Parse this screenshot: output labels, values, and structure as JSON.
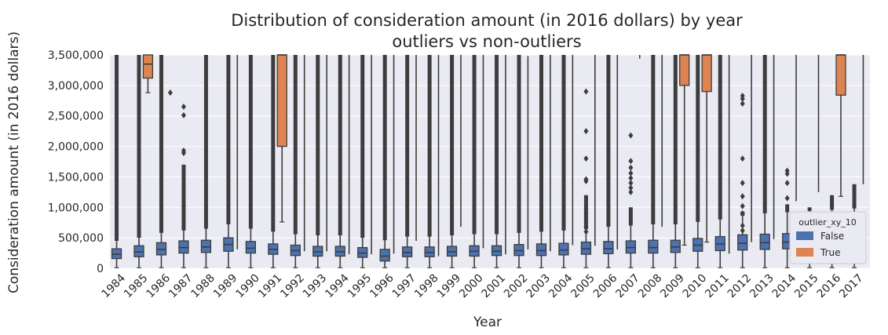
{
  "chart_data": {
    "type": "boxplot",
    "title_line1": "Distribution of consideration amount (in 2016 dollars) by year",
    "title_line2": "outliers vs non-outliers",
    "xlabel": "Year",
    "ylabel": "Consideration amount (in 2016 dollars)",
    "ylim": [
      0,
      3500000
    ],
    "yticks": [
      0,
      500000,
      1000000,
      1500000,
      2000000,
      2500000,
      3000000,
      3500000
    ],
    "ytick_labels": [
      "0",
      "500,000",
      "1,000,000",
      "1,500,000",
      "2,000,000",
      "2,500,000",
      "3,000,000",
      "3,500,000"
    ],
    "grid": true,
    "legend": {
      "title": "outlier_xy_10",
      "placement": "lower-right",
      "entries": [
        {
          "label": "False",
          "color": "#4c72b0"
        },
        {
          "label": "True",
          "color": "#dd8452"
        }
      ]
    },
    "categories": [
      "1984",
      "1985",
      "1986",
      "1987",
      "1988",
      "1989",
      "1990",
      "1991",
      "1992",
      "1993",
      "1994",
      "1995",
      "1996",
      "1997",
      "1998",
      "1999",
      "2000",
      "2001",
      "2002",
      "2003",
      "2004",
      "2005",
      "2006",
      "2007",
      "2008",
      "2009",
      "2010",
      "2011",
      "2012",
      "2013",
      "2014",
      "2015",
      "2016",
      "2017"
    ],
    "series": [
      {
        "name": "False",
        "color": "#4c72b0",
        "boxes": [
          {
            "q1": 160000,
            "median": 230000,
            "q3": 320000,
            "whisker_low": 10000,
            "whisker_high": 450000,
            "fliers_dense_to": 3500000,
            "fliers": []
          },
          {
            "q1": 190000,
            "median": 270000,
            "q3": 370000,
            "whisker_low": 10000,
            "whisker_high": 500000,
            "fliers_dense_to": 3500000,
            "fliers": []
          },
          {
            "q1": 220000,
            "median": 310000,
            "q3": 420000,
            "whisker_low": 10000,
            "whisker_high": 580000,
            "fliers_dense_to": 3500000,
            "fliers": []
          },
          {
            "q1": 250000,
            "median": 340000,
            "q3": 450000,
            "whisker_low": 10000,
            "whisker_high": 620000,
            "fliers_dense_to": 1700000,
            "fliers": [
              1020000,
              1890000,
              1930000,
              2510000,
              2650000
            ]
          },
          {
            "q1": 260000,
            "median": 350000,
            "q3": 460000,
            "whisker_low": 10000,
            "whisker_high": 650000,
            "fliers_dense_to": 3500000,
            "fliers": []
          },
          {
            "q1": 280000,
            "median": 390000,
            "q3": 500000,
            "whisker_low": 10000,
            "whisker_high": 720000,
            "fliers_dense_to": 3500000,
            "fliers": []
          },
          {
            "q1": 250000,
            "median": 330000,
            "q3": 440000,
            "whisker_low": 10000,
            "whisker_high": 650000,
            "fliers_dense_to": 3500000,
            "fliers": []
          },
          {
            "q1": 230000,
            "median": 310000,
            "q3": 400000,
            "whisker_low": 10000,
            "whisker_high": 600000,
            "fliers_dense_to": 3500000,
            "fliers": []
          },
          {
            "q1": 210000,
            "median": 290000,
            "q3": 380000,
            "whisker_low": 10000,
            "whisker_high": 560000,
            "fliers_dense_to": 3500000,
            "fliers": []
          },
          {
            "q1": 200000,
            "median": 270000,
            "q3": 360000,
            "whisker_low": 10000,
            "whisker_high": 540000,
            "fliers_dense_to": 3500000,
            "fliers": []
          },
          {
            "q1": 200000,
            "median": 270000,
            "q3": 360000,
            "whisker_low": 10000,
            "whisker_high": 540000,
            "fliers_dense_to": 3500000,
            "fliers": []
          },
          {
            "q1": 180000,
            "median": 250000,
            "q3": 340000,
            "whisker_low": 10000,
            "whisker_high": 500000,
            "fliers_dense_to": 3500000,
            "fliers": []
          },
          {
            "q1": 120000,
            "median": 200000,
            "q3": 310000,
            "whisker_low": 10000,
            "whisker_high": 460000,
            "fliers_dense_to": 3500000,
            "fliers": []
          },
          {
            "q1": 190000,
            "median": 260000,
            "q3": 350000,
            "whisker_low": 10000,
            "whisker_high": 520000,
            "fliers_dense_to": 3500000,
            "fliers": []
          },
          {
            "q1": 190000,
            "median": 260000,
            "q3": 350000,
            "whisker_low": 10000,
            "whisker_high": 520000,
            "fliers_dense_to": 3500000,
            "fliers": []
          },
          {
            "q1": 200000,
            "median": 270000,
            "q3": 360000,
            "whisker_low": 10000,
            "whisker_high": 540000,
            "fliers_dense_to": 3500000,
            "fliers": []
          },
          {
            "q1": 200000,
            "median": 280000,
            "q3": 370000,
            "whisker_low": 10000,
            "whisker_high": 560000,
            "fliers_dense_to": 3500000,
            "fliers": []
          },
          {
            "q1": 210000,
            "median": 280000,
            "q3": 370000,
            "whisker_low": 10000,
            "whisker_high": 560000,
            "fliers_dense_to": 3500000,
            "fliers": []
          },
          {
            "q1": 210000,
            "median": 290000,
            "q3": 390000,
            "whisker_low": 10000,
            "whisker_high": 580000,
            "fliers_dense_to": 3500000,
            "fliers": []
          },
          {
            "q1": 210000,
            "median": 290000,
            "q3": 400000,
            "whisker_low": 10000,
            "whisker_high": 600000,
            "fliers_dense_to": 3500000,
            "fliers": []
          },
          {
            "q1": 220000,
            "median": 300000,
            "q3": 410000,
            "whisker_low": 10000,
            "whisker_high": 620000,
            "fliers_dense_to": 3500000,
            "fliers": []
          },
          {
            "q1": 230000,
            "median": 320000,
            "q3": 430000,
            "whisker_low": 10000,
            "whisker_high": 640000,
            "fliers_dense_to": 1200000,
            "fliers": [
              600000,
              680000,
              820000,
              900000,
              1430000,
              1460000,
              1800000,
              2250000,
              2900000
            ]
          },
          {
            "q1": 240000,
            "median": 320000,
            "q3": 440000,
            "whisker_low": 10000,
            "whisker_high": 680000,
            "fliers_dense_to": 3500000,
            "fliers": []
          },
          {
            "q1": 250000,
            "median": 340000,
            "q3": 450000,
            "whisker_low": 10000,
            "whisker_high": 700000,
            "fliers_dense_to": 1000000,
            "fliers": [
              1250000,
              1320000,
              1400000,
              1480000,
              1560000,
              1650000,
              1760000,
              2180000
            ]
          },
          {
            "q1": 250000,
            "median": 340000,
            "q3": 460000,
            "whisker_low": 10000,
            "whisker_high": 720000,
            "fliers_dense_to": 3500000,
            "fliers": []
          },
          {
            "q1": 260000,
            "median": 350000,
            "q3": 460000,
            "whisker_low": 10000,
            "whisker_high": 720000,
            "fliers_dense_to": 3500000,
            "fliers": []
          },
          {
            "q1": 280000,
            "median": 380000,
            "q3": 490000,
            "whisker_low": 10000,
            "whisker_high": 760000,
            "fliers_dense_to": 3500000,
            "fliers": []
          },
          {
            "q1": 290000,
            "median": 400000,
            "q3": 520000,
            "whisker_low": 10000,
            "whisker_high": 800000,
            "fliers_dense_to": 3500000,
            "fliers": []
          },
          {
            "q1": 300000,
            "median": 410000,
            "q3": 550000,
            "whisker_low": 10000,
            "whisker_high": 860000,
            "fliers_dense_to": 930000,
            "fliers": [
              620000,
              700000,
              900000,
              1020000,
              1180000,
              1400000,
              1800000,
              2700000,
              2780000,
              2830000
            ]
          },
          {
            "q1": 310000,
            "median": 420000,
            "q3": 560000,
            "whisker_low": 10000,
            "whisker_high": 900000,
            "fliers_dense_to": 3500000,
            "fliers": []
          },
          {
            "q1": 320000,
            "median": 430000,
            "q3": 570000,
            "whisker_low": 10000,
            "whisker_high": 920000,
            "fliers_dense_to": 1050000,
            "fliers": [
              1150000,
              1400000,
              1550000,
              1600000
            ]
          },
          {
            "q1": 330000,
            "median": 440000,
            "q3": 580000,
            "whisker_low": 10000,
            "whisker_high": 940000,
            "fliers_dense_to": 1000000,
            "fliers": []
          },
          {
            "q1": 340000,
            "median": 450000,
            "q3": 590000,
            "whisker_low": 10000,
            "whisker_high": 960000,
            "fliers_dense_to": 1200000,
            "fliers": []
          },
          {
            "q1": 350000,
            "median": 460000,
            "q3": 600000,
            "whisker_low": 10000,
            "whisker_high": 980000,
            "fliers_dense_to": 1380000,
            "fliers": []
          }
        ]
      },
      {
        "name": "True",
        "color": "#dd8452",
        "boxes": [
          null,
          {
            "q1": 3120000,
            "median": 3350000,
            "q3": 3500000,
            "whisker_low": 2880000,
            "whisker_high": 3500000,
            "fliers": []
          },
          {
            "q1": null,
            "median": null,
            "q3": null,
            "whisker_low": 2880000,
            "whisker_high": 2880000,
            "fliers": [
              2880000
            ]
          },
          null,
          null,
          {
            "q1": null,
            "median": null,
            "q3": null,
            "whisker_low": 310000,
            "whisker_high": 3500000,
            "fliers": []
          },
          null,
          {
            "q1": 2000000,
            "median": 3500000,
            "q3": 3500000,
            "whisker_low": 760000,
            "whisker_high": 3500000,
            "fliers": []
          },
          {
            "q1": null,
            "median": null,
            "q3": null,
            "whisker_low": 280000,
            "whisker_high": 3500000,
            "fliers": []
          },
          {
            "q1": null,
            "median": null,
            "q3": null,
            "whisker_low": 280000,
            "whisker_high": 3500000,
            "fliers": []
          },
          {
            "q1": null,
            "median": null,
            "q3": null,
            "whisker_low": 230000,
            "whisker_high": 3500000,
            "fliers": []
          },
          {
            "q1": null,
            "median": null,
            "q3": null,
            "whisker_low": 230000,
            "whisker_high": 3500000,
            "fliers": []
          },
          {
            "q1": null,
            "median": null,
            "q3": null,
            "whisker_low": 240000,
            "whisker_high": 3500000,
            "fliers": []
          },
          {
            "q1": null,
            "median": null,
            "q3": null,
            "whisker_low": 450000,
            "whisker_high": 3500000,
            "fliers": []
          },
          {
            "q1": null,
            "median": null,
            "q3": null,
            "whisker_low": 200000,
            "whisker_high": 3500000,
            "fliers": []
          },
          {
            "q1": null,
            "median": null,
            "q3": null,
            "whisker_low": 680000,
            "whisker_high": 3500000,
            "fliers": []
          },
          {
            "q1": null,
            "median": null,
            "q3": null,
            "whisker_low": 330000,
            "whisker_high": 3500000,
            "fliers": []
          },
          {
            "q1": null,
            "median": null,
            "q3": null,
            "whisker_low": 230000,
            "whisker_high": 3500000,
            "fliers": []
          },
          {
            "q1": null,
            "median": null,
            "q3": null,
            "whisker_low": 310000,
            "whisker_high": 3480000,
            "fliers": []
          },
          {
            "q1": null,
            "median": null,
            "q3": null,
            "whisker_low": 280000,
            "whisker_high": 3500000,
            "fliers": []
          },
          {
            "q1": null,
            "median": null,
            "q3": null,
            "whisker_low": 380000,
            "whisker_high": 3500000,
            "fliers": []
          },
          {
            "q1": null,
            "median": null,
            "q3": null,
            "whisker_low": 370000,
            "whisker_high": 3500000,
            "fliers": []
          },
          {
            "q1": null,
            "median": null,
            "q3": null,
            "whisker_low": 310000,
            "whisker_high": 3500000,
            "fliers": []
          },
          {
            "q1": null,
            "median": null,
            "q3": null,
            "whisker_low": 3440000,
            "whisker_high": 3500000,
            "fliers": []
          },
          {
            "q1": null,
            "median": null,
            "q3": null,
            "whisker_low": 680000,
            "whisker_high": 3500000,
            "fliers": []
          },
          {
            "q1": 3000000,
            "median": 3500000,
            "q3": 3500000,
            "whisker_low": 380000,
            "whisker_high": 3500000,
            "fliers": []
          },
          {
            "q1": 2900000,
            "median": 3500000,
            "q3": 3500000,
            "whisker_low": 430000,
            "whisker_high": 3500000,
            "fliers": []
          },
          {
            "q1": null,
            "median": null,
            "q3": null,
            "whisker_low": 240000,
            "whisker_high": 3500000,
            "fliers": []
          },
          {
            "q1": null,
            "median": null,
            "q3": null,
            "whisker_low": 430000,
            "whisker_high": 3500000,
            "fliers": []
          },
          {
            "q1": null,
            "median": null,
            "q3": null,
            "whisker_low": 480000,
            "whisker_high": 3500000,
            "fliers": []
          },
          {
            "q1": null,
            "median": null,
            "q3": null,
            "whisker_low": 1100000,
            "whisker_high": 3500000,
            "fliers": []
          },
          {
            "q1": null,
            "median": null,
            "q3": null,
            "whisker_low": 1250000,
            "whisker_high": 3500000,
            "fliers": []
          },
          {
            "q1": 2840000,
            "median": 3500000,
            "q3": 3500000,
            "whisker_low": 1180000,
            "whisker_high": 3500000,
            "fliers": []
          },
          {
            "q1": null,
            "median": null,
            "q3": null,
            "whisker_low": 1380000,
            "whisker_high": 3500000,
            "fliers": []
          }
        ]
      }
    ]
  }
}
